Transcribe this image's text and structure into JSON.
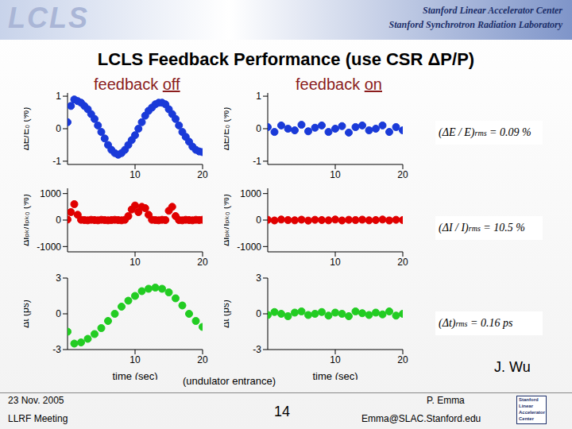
{
  "slide": {
    "header": {
      "logo": "LCLS",
      "lines": [
        "Stanford Linear Accelerator Center",
        "Stanford Synchrotron Radiation Laboratory"
      ]
    },
    "title": "LCLS Feedback Performance (use CSR ΔP/P)",
    "columns": [
      {
        "text": "feedback",
        "state": "off"
      },
      {
        "text": "feedback",
        "state": "on"
      }
    ],
    "note": "(undulator entrance)",
    "credit": "J. Wu",
    "rms": [
      {
        "lhs": "(ΔE / E)",
        "sub": "rms",
        "rhs": "= 0.09 %"
      },
      {
        "lhs": "(ΔI / I)",
        "sub": "rms",
        "rhs": "= 10.5 %"
      },
      {
        "lhs": "(Δt)",
        "sub": "rms",
        "rhs": "= 0.16 ps"
      }
    ],
    "footer": {
      "date": "23 Nov. 2005",
      "meeting": "LLRF Meeting",
      "page": 14,
      "author": "P. Emma",
      "email": "Emma@SLAC.Stanford.edu",
      "badge": [
        "Stanford",
        "Linear",
        "Accelerator",
        "Center"
      ]
    }
  },
  "chart_data": [
    {
      "type": "scatter",
      "ylabel": "ΔE/E₀ (%)",
      "xlim": [
        0,
        20
      ],
      "xticks": [
        10,
        20
      ],
      "ylim": [
        -1.1,
        1.1
      ],
      "yticks": [
        -1,
        0,
        1
      ],
      "color": "#1a3ad8",
      "marker": "circle",
      "x": [
        0,
        0.5,
        1,
        1.5,
        2,
        2.5,
        3,
        3.5,
        4,
        4.5,
        5,
        5.5,
        6,
        6.5,
        7,
        7.5,
        8,
        8.5,
        9,
        9.5,
        10,
        10.5,
        11,
        11.5,
        12,
        12.5,
        13,
        13.5,
        14,
        14.5,
        15,
        15.5,
        16,
        16.5,
        17,
        17.5,
        18,
        18.5,
        19,
        19.5,
        20
      ],
      "values": [
        0.2,
        0.7,
        0.9,
        0.85,
        0.8,
        0.7,
        0.6,
        0.45,
        0.3,
        0.1,
        -0.1,
        -0.3,
        -0.5,
        -0.65,
        -0.75,
        -0.8,
        -0.75,
        -0.65,
        -0.5,
        -0.35,
        -0.2,
        0,
        0.2,
        0.4,
        0.55,
        0.65,
        0.75,
        0.8,
        0.8,
        0.75,
        0.6,
        0.45,
        0.3,
        0.1,
        -0.1,
        -0.25,
        -0.4,
        -0.55,
        -0.65,
        -0.7,
        -0.72
      ]
    },
    {
      "type": "scatter",
      "ylabel": "ΔIₚₖ/Iₚₖ₀ (%)",
      "xlim": [
        0,
        20
      ],
      "xticks": [
        10,
        20
      ],
      "ylim": [
        -1200,
        1200
      ],
      "yticks": [
        -1000,
        0,
        1000
      ],
      "color": "#e00000",
      "marker": "circle",
      "x": [
        0,
        0.5,
        1,
        1.5,
        2,
        2.5,
        3,
        3.5,
        4,
        4.5,
        5,
        5.5,
        6,
        6.5,
        7,
        7.5,
        8,
        8.5,
        9,
        9.5,
        10,
        10.5,
        11,
        11.5,
        12,
        12.5,
        13,
        13.5,
        14,
        14.5,
        15,
        15.5,
        16,
        16.5,
        17,
        17.5,
        18,
        18.5,
        19,
        19.5,
        20
      ],
      "values": [
        20,
        300,
        600,
        200,
        10,
        0,
        -10,
        10,
        0,
        -10,
        10,
        0,
        -10,
        0,
        10,
        0,
        -10,
        10,
        150,
        400,
        550,
        300,
        500,
        450,
        200,
        10,
        0,
        -10,
        10,
        0,
        350,
        500,
        150,
        0,
        -10,
        10,
        0,
        -10,
        10,
        0,
        10
      ]
    },
    {
      "type": "scatter",
      "ylabel": "Δt (ps)",
      "xlabel": "time (sec)",
      "xlim": [
        0,
        20
      ],
      "xticks": [
        10,
        20
      ],
      "ylim": [
        -3,
        3
      ],
      "yticks": [
        -3,
        0,
        3
      ],
      "color": "#22cc22",
      "marker": "circle",
      "x": [
        0,
        1,
        2,
        3,
        4,
        5,
        6,
        7,
        8,
        9,
        10,
        11,
        12,
        13,
        14,
        15,
        16,
        17,
        18,
        19,
        20
      ],
      "values": [
        -1.5,
        -2.5,
        -2.4,
        -2.1,
        -1.7,
        -1.2,
        -0.6,
        0,
        0.6,
        1.1,
        1.5,
        1.9,
        2.1,
        2.2,
        2.1,
        1.8,
        1.3,
        0.7,
        0,
        -0.6,
        -1.1
      ]
    },
    {
      "type": "scatter",
      "ylabel": "ΔE/E₀ (%)",
      "xlim": [
        0,
        20
      ],
      "xticks": [
        10,
        20
      ],
      "ylim": [
        -1.1,
        1.1
      ],
      "yticks": [
        -1,
        0,
        1
      ],
      "color": "#1a3ad8",
      "marker": "circle",
      "x": [
        0,
        1,
        2,
        3,
        4,
        5,
        6,
        7,
        8,
        9,
        10,
        11,
        12,
        13,
        14,
        15,
        16,
        17,
        18,
        19,
        20
      ],
      "values": [
        0.05,
        -0.1,
        0.1,
        0,
        -0.05,
        0.12,
        -0.08,
        0.03,
        0.1,
        -0.1,
        0,
        0.08,
        -0.12,
        0.05,
        0.1,
        -0.05,
        0,
        0.1,
        -0.1,
        0.05,
        -0.05
      ]
    },
    {
      "type": "scatter",
      "ylabel": "ΔIₚₖ/Iₚₖ₀ (%)",
      "xlim": [
        0,
        20
      ],
      "xticks": [
        10,
        20
      ],
      "ylim": [
        -1200,
        1200
      ],
      "yticks": [
        -1000,
        0,
        1000
      ],
      "color": "#e00000",
      "marker": "circle",
      "x": [
        0,
        1,
        2,
        3,
        4,
        5,
        6,
        7,
        8,
        9,
        10,
        11,
        12,
        13,
        14,
        15,
        16,
        17,
        18,
        19,
        20
      ],
      "values": [
        10,
        -15,
        20,
        0,
        -10,
        15,
        -20,
        10,
        0,
        -10,
        20,
        -15,
        10,
        0,
        15,
        -10,
        0,
        20,
        -15,
        10,
        0
      ]
    },
    {
      "type": "scatter",
      "ylabel": "Δt (ps)",
      "xlabel": "time (sec)",
      "xlim": [
        0,
        20
      ],
      "xticks": [
        10,
        20
      ],
      "ylim": [
        -3,
        3
      ],
      "yticks": [
        -3,
        0,
        3
      ],
      "color": "#22cc22",
      "marker": "circle",
      "x": [
        0,
        1,
        2,
        3,
        4,
        5,
        6,
        7,
        8,
        9,
        10,
        11,
        12,
        13,
        14,
        15,
        16,
        17,
        18,
        19,
        20
      ],
      "values": [
        -0.1,
        0.15,
        0,
        -0.2,
        0.1,
        0.2,
        -0.1,
        0,
        0.15,
        -0.15,
        0.1,
        0,
        -0.2,
        0.2,
        0.05,
        -0.1,
        0.1,
        -0.05,
        0.2,
        -0.15,
        0
      ]
    }
  ]
}
